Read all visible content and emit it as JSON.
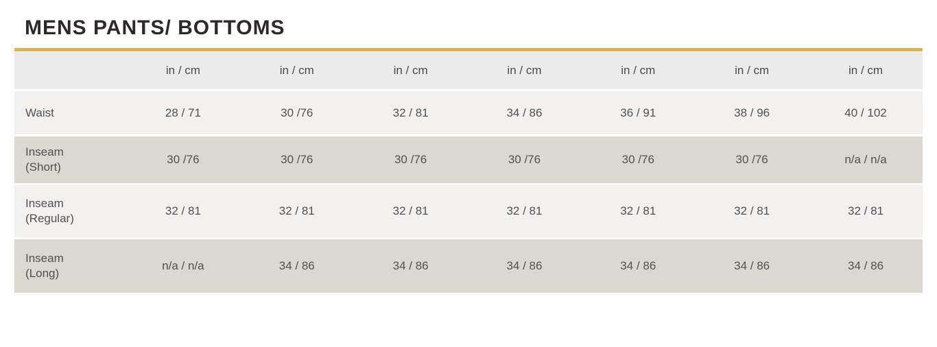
{
  "header": {
    "title": "MENS PANTS/ BOTTOMS",
    "accent_color": "#d9b459",
    "title_color": "#2e2829"
  },
  "table": {
    "unit_headers": [
      "in / cm",
      "in / cm",
      "in / cm",
      "in / cm",
      "in / cm",
      "in / cm",
      "in / cm"
    ],
    "colors": {
      "header_bg": "#ebebeb",
      "light_row_bg": "#f2f1ef",
      "dark_row_bg": "#dbd7d1",
      "text": "#515052"
    },
    "rows": [
      {
        "label": "Waist",
        "label2": "",
        "values": [
          "28 / 71",
          "30 /76",
          "32 / 81",
          "34 / 86",
          "36 / 91",
          "38 / 96",
          "40 / 102"
        ]
      },
      {
        "label": "Inseam",
        "label2": "(Short)",
        "values": [
          "30 /76",
          "30 /76",
          "30 /76",
          "30 /76",
          "30 /76",
          "30 /76",
          "n/a / n/a"
        ]
      },
      {
        "label": "Inseam",
        "label2": "(Regular)",
        "values": [
          "32 / 81",
          "32 / 81",
          "32 / 81",
          "32 / 81",
          "32 / 81",
          "32 / 81",
          "32 / 81"
        ]
      },
      {
        "label": "Inseam",
        "label2": "(Long)",
        "values": [
          "n/a / n/a",
          "34 / 86",
          "34 / 86",
          "34 / 86",
          "34 / 86",
          "34 / 86",
          "34 / 86"
        ]
      }
    ]
  }
}
